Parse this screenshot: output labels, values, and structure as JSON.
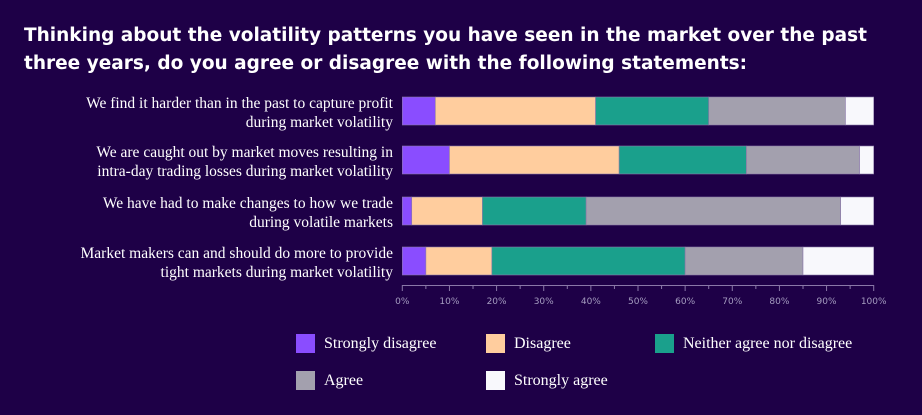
{
  "chart_data": {
    "type": "bar",
    "orientation": "horizontal",
    "stacked": true,
    "title": "Thinking about the volatility patterns you have seen in the market over the past three years, do you agree or disagree with the following statements:",
    "categories": [
      [
        "We find it harder than in the past to capture profit",
        "during market volatility"
      ],
      [
        "We are caught out by market moves resulting in",
        "intra-day trading losses during market volatility"
      ],
      [
        "We have had to make changes to how we trade",
        "during volatile markets"
      ],
      [
        "Market makers can and should do more to provide",
        "tight markets during market volatility"
      ]
    ],
    "series": [
      {
        "name": "Strongly disagree",
        "color": "#8a4dff",
        "values": [
          7,
          10,
          2,
          5
        ]
      },
      {
        "name": "Disagree",
        "color": "#ffcd9e",
        "values": [
          34,
          36,
          15,
          14
        ]
      },
      {
        "name": "Neither agree nor disagree",
        "color": "#1aa08c",
        "values": [
          24,
          27,
          22,
          41
        ]
      },
      {
        "name": "Agree",
        "color": "#a3a0ae",
        "values": [
          29,
          24,
          54,
          25
        ]
      },
      {
        "name": "Strongly agree",
        "color": "#f8f8fc",
        "values": [
          6,
          3,
          7,
          15
        ]
      }
    ],
    "xlim": [
      0,
      100
    ],
    "xticks": [
      "0%",
      "10%",
      "20%",
      "30%",
      "40%",
      "50%",
      "60%",
      "70%",
      "80%",
      "90%",
      "100%"
    ],
    "grid": false,
    "legend_position": "bottom"
  }
}
